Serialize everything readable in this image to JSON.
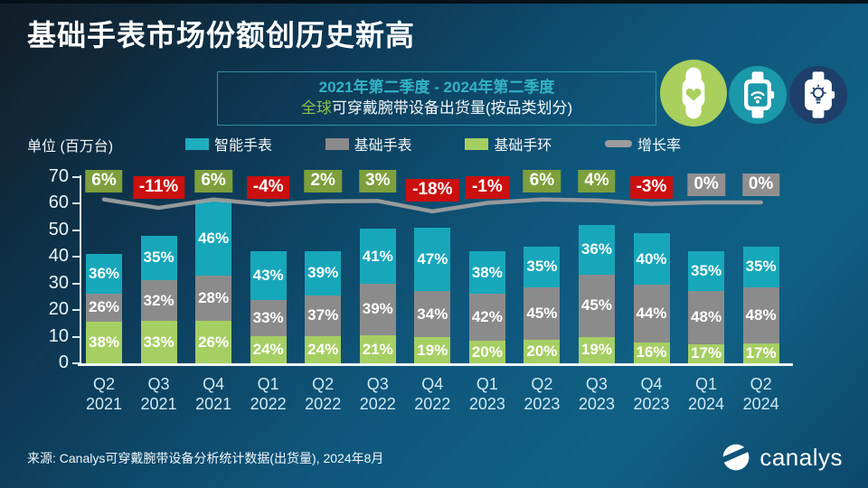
{
  "slide": {
    "title": "基础手表市场份额创历史新高",
    "subtitle_line1": "2021年第二季度 - 2024年第二季度",
    "subtitle_line2_highlight": "全球",
    "subtitle_line2_rest": "可穿戴腕带设备出货量(按品类划分)",
    "unit_label": "单位 (百万台)",
    "source": "来源: Canalys可穿戴腕带设备分析统计数据(出货量), 2024年8月",
    "logo_text": "canalys"
  },
  "icon_badges": [
    {
      "name": "fitness-band-heart-icon",
      "bg": "#a9cf5d"
    },
    {
      "name": "smartwatch-wifi-icon",
      "bg": "#1b98a9"
    },
    {
      "name": "smartwatch-idea-icon",
      "bg": "#1e3f69"
    }
  ],
  "legend": [
    {
      "key": "smartwatch",
      "label": "智能手表",
      "color": "#1fadc0",
      "shape": "square"
    },
    {
      "key": "basic-watch",
      "label": "基础手表",
      "color": "#8b8b8b",
      "shape": "square"
    },
    {
      "key": "basic-band",
      "label": "基础手环",
      "color": "#a6cf63",
      "shape": "square"
    },
    {
      "key": "growth-rate",
      "label": "增长率",
      "color": "#9c9c9c",
      "shape": "line"
    }
  ],
  "chart_data": {
    "type": "bar",
    "stacked": true,
    "title": "全球可穿戴腕带设备出货量(按品类划分)",
    "ylabel": "单位 (百万台)",
    "ylim": [
      0,
      70
    ],
    "yticks": [
      0,
      10,
      20,
      30,
      40,
      50,
      60,
      70
    ],
    "grid": false,
    "legend_position": "top",
    "categories": [
      [
        "Q2",
        "2021"
      ],
      [
        "Q3",
        "2021"
      ],
      [
        "Q4",
        "2021"
      ],
      [
        "Q1",
        "2022"
      ],
      [
        "Q2",
        "2022"
      ],
      [
        "Q3",
        "2022"
      ],
      [
        "Q4",
        "2022"
      ],
      [
        "Q1",
        "2023"
      ],
      [
        "Q2",
        "2023"
      ],
      [
        "Q3",
        "2023"
      ],
      [
        "Q4",
        "2023"
      ],
      [
        "Q1",
        "2024"
      ],
      [
        "Q2",
        "2024"
      ]
    ],
    "totals_millions": [
      41,
      48,
      61,
      42,
      42,
      50,
      51,
      42,
      44,
      52,
      49,
      42,
      44
    ],
    "series": [
      {
        "key": "basic-band",
        "name": "基础手环",
        "color": "#a6cf63",
        "share_pct": [
          38,
          33,
          26,
          24,
          24,
          21,
          19,
          20,
          20,
          19,
          16,
          17,
          17
        ]
      },
      {
        "key": "basic-watch",
        "name": "基础手表",
        "color": "#8b8b8b",
        "share_pct": [
          26,
          32,
          28,
          33,
          37,
          39,
          34,
          42,
          45,
          45,
          44,
          48,
          48
        ]
      },
      {
        "key": "smartwatch",
        "name": "智能手表",
        "color": "#17a7ba",
        "share_pct": [
          36,
          35,
          46,
          43,
          39,
          41,
          47,
          38,
          35,
          36,
          40,
          35,
          35
        ]
      }
    ],
    "growth_line": {
      "name": "增长率",
      "values_pct": [
        6,
        -11,
        6,
        -4,
        2,
        3,
        -18,
        -1,
        6,
        4,
        -3,
        0,
        0
      ],
      "labels": [
        "6%",
        "-11%",
        "6%",
        "-4%",
        "2%",
        "3%",
        "-18%",
        "-1%",
        "6%",
        "4%",
        "-3%",
        "0%",
        "0%"
      ],
      "line_color": "#9e9e9e",
      "label_colors": {
        "positive": "#7d9f3c",
        "negative": "#cc0f0f",
        "zero": "#8f8f8f"
      }
    }
  }
}
